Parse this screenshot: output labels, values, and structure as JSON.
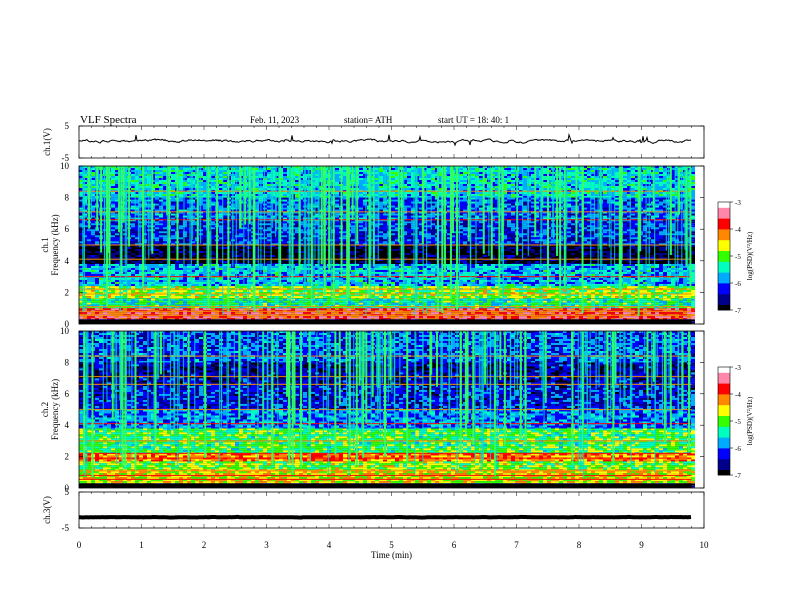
{
  "header": {
    "title": "VLF  Spectra",
    "date": "Feb. 11, 2023",
    "station": "station= ATH",
    "start": "start  UT  =    18: 40: 1"
  },
  "chart_data": [
    {
      "id": "ch1-waveform",
      "type": "line",
      "ylabel": "ch.1(V)",
      "ylim": [
        -5,
        5
      ],
      "yticks": [
        "5",
        "-5"
      ],
      "x_range_min": [
        0,
        9.8
      ],
      "baseline_v": 0.3,
      "amplitude_v": 1.2
    },
    {
      "id": "ch1-spectrogram",
      "type": "heatmap",
      "ylabel": "ch.1\nFrequency  (kHz)",
      "ylim": [
        0,
        10
      ],
      "yticks": [
        "0",
        "2",
        "4",
        "6",
        "8",
        "10"
      ],
      "x_range_min": [
        0,
        9.8
      ],
      "colorbar": {
        "label": "log(PSD)(V²/Hz)",
        "range": [
          -7,
          -3
        ],
        "ticks": [
          "-3",
          "-4",
          "-5",
          "-6",
          "-7"
        ]
      },
      "bands_khz": [
        {
          "from": 0.0,
          "to": 0.3,
          "level": -7
        },
        {
          "from": 0.3,
          "to": 1.0,
          "level": -3.8
        },
        {
          "from": 1.0,
          "to": 1.6,
          "level": -5.3
        },
        {
          "from": 1.6,
          "to": 2.4,
          "level": -4.9
        },
        {
          "from": 2.4,
          "to": 3.8,
          "level": -5.7
        },
        {
          "from": 3.8,
          "to": 5.0,
          "level": -6.9
        },
        {
          "from": 5.0,
          "to": 6.5,
          "level": -6.2
        },
        {
          "from": 6.5,
          "to": 8.0,
          "level": -6.0
        },
        {
          "from": 8.0,
          "to": 10.0,
          "level": -5.6
        }
      ]
    },
    {
      "id": "ch2-spectrogram",
      "type": "heatmap",
      "ylabel": "ch.2\nFrequency  (kHz)",
      "ylim": [
        0,
        10
      ],
      "yticks": [
        "0",
        "2",
        "4",
        "6",
        "8",
        "10"
      ],
      "x_range_min": [
        0,
        9.8
      ],
      "colorbar": {
        "label": "log(PSD)(V²/Hz)",
        "range": [
          -7,
          -3
        ],
        "ticks": [
          "-3",
          "-4",
          "-5",
          "-6",
          "-7"
        ]
      },
      "bands_khz": [
        {
          "from": 0.0,
          "to": 0.3,
          "level": -7
        },
        {
          "from": 0.3,
          "to": 1.2,
          "level": -4.6
        },
        {
          "from": 1.2,
          "to": 1.7,
          "level": -4.9
        },
        {
          "from": 1.7,
          "to": 2.2,
          "level": -4.2
        },
        {
          "from": 2.2,
          "to": 3.8,
          "level": -5.1
        },
        {
          "from": 3.8,
          "to": 5.0,
          "level": -5.9
        },
        {
          "from": 5.0,
          "to": 6.5,
          "level": -6.3
        },
        {
          "from": 6.5,
          "to": 8.0,
          "level": -6.5
        },
        {
          "from": 8.0,
          "to": 10.0,
          "level": -6.1
        }
      ]
    },
    {
      "id": "ch3-waveform",
      "type": "line",
      "ylabel": "ch.3(V)",
      "ylim": [
        -5,
        5
      ],
      "yticks": [
        "5",
        "-5"
      ],
      "x_range_min": [
        0,
        9.8
      ],
      "baseline_v": -2.0,
      "amplitude_v": 0.15
    }
  ],
  "x_axis": {
    "label": "Time  (min)",
    "range": [
      0,
      10
    ],
    "ticks": [
      "0",
      "1",
      "2",
      "3",
      "4",
      "5",
      "6",
      "7",
      "8",
      "9",
      "10"
    ]
  },
  "colormap": [
    "#000000",
    "#00008b",
    "#0000ff",
    "#00aaff",
    "#00ffbf",
    "#33ff00",
    "#ffff00",
    "#ff8800",
    "#ff0000",
    "#ff88aa",
    "#ffffff"
  ]
}
